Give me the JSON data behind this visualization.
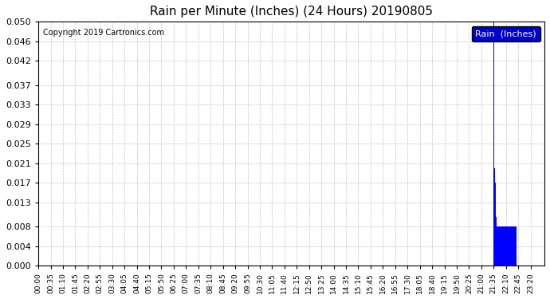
{
  "title": "Rain per Minute (Inches) (24 Hours) 20190805",
  "copyright_text": "Copyright 2019 Cartronics.com",
  "legend_label": "Rain  (Inches)",
  "bar_color": "#0000ff",
  "background_color": "#ffffff",
  "grid_color": "#aaaaaa",
  "ylim": [
    0.0,
    0.05
  ],
  "yticks": [
    0.0,
    0.004,
    0.008,
    0.013,
    0.017,
    0.021,
    0.025,
    0.029,
    0.033,
    0.037,
    0.042,
    0.046,
    0.05
  ],
  "total_minutes": 1440,
  "rain_events": [
    {
      "minute": 1295,
      "value": 0.05
    },
    {
      "minute": 1296,
      "value": 0.02
    },
    {
      "minute": 1297,
      "value": 0.029
    },
    {
      "minute": 1298,
      "value": 0.02
    },
    {
      "minute": 1299,
      "value": 0.021
    },
    {
      "minute": 1300,
      "value": 0.017
    },
    {
      "minute": 1301,
      "value": 0.013
    },
    {
      "minute": 1302,
      "value": 0.01
    },
    {
      "minute": 1303,
      "value": 0.008
    },
    {
      "minute": 1304,
      "value": 0.008
    },
    {
      "minute": 1305,
      "value": 0.008
    },
    {
      "minute": 1306,
      "value": 0.008
    },
    {
      "minute": 1307,
      "value": 0.008
    },
    {
      "minute": 1308,
      "value": 0.008
    },
    {
      "minute": 1309,
      "value": 0.008
    },
    {
      "minute": 1310,
      "value": 0.008
    },
    {
      "minute": 1311,
      "value": 0.008
    },
    {
      "minute": 1312,
      "value": 0.008
    },
    {
      "minute": 1313,
      "value": 0.008
    },
    {
      "minute": 1314,
      "value": 0.008
    },
    {
      "minute": 1315,
      "value": 0.008
    },
    {
      "minute": 1316,
      "value": 0.008
    },
    {
      "minute": 1317,
      "value": 0.008
    },
    {
      "minute": 1318,
      "value": 0.008
    },
    {
      "minute": 1319,
      "value": 0.008
    },
    {
      "minute": 1320,
      "value": 0.008
    },
    {
      "minute": 1321,
      "value": 0.008
    },
    {
      "minute": 1322,
      "value": 0.008
    },
    {
      "minute": 1323,
      "value": 0.008
    },
    {
      "minute": 1324,
      "value": 0.008
    },
    {
      "minute": 1325,
      "value": 0.008
    },
    {
      "minute": 1326,
      "value": 0.008
    },
    {
      "minute": 1327,
      "value": 0.008
    },
    {
      "minute": 1328,
      "value": 0.008
    },
    {
      "minute": 1329,
      "value": 0.008
    },
    {
      "minute": 1330,
      "value": 0.008
    },
    {
      "minute": 1331,
      "value": 0.008
    },
    {
      "minute": 1332,
      "value": 0.008
    },
    {
      "minute": 1333,
      "value": 0.008
    },
    {
      "minute": 1334,
      "value": 0.008
    },
    {
      "minute": 1335,
      "value": 0.008
    },
    {
      "minute": 1336,
      "value": 0.008
    },
    {
      "minute": 1337,
      "value": 0.008
    },
    {
      "minute": 1338,
      "value": 0.008
    },
    {
      "minute": 1339,
      "value": 0.008
    },
    {
      "minute": 1340,
      "value": 0.008
    },
    {
      "minute": 1341,
      "value": 0.008
    },
    {
      "minute": 1342,
      "value": 0.008
    },
    {
      "minute": 1343,
      "value": 0.008
    },
    {
      "minute": 1344,
      "value": 0.008
    },
    {
      "minute": 1345,
      "value": 0.008
    },
    {
      "minute": 1346,
      "value": 0.008
    },
    {
      "minute": 1347,
      "value": 0.008
    },
    {
      "minute": 1348,
      "value": 0.008
    },
    {
      "minute": 1349,
      "value": 0.008
    },
    {
      "minute": 1350,
      "value": 0.008
    },
    {
      "minute": 1351,
      "value": 0.008
    },
    {
      "minute": 1352,
      "value": 0.008
    },
    {
      "minute": 1353,
      "value": 0.008
    },
    {
      "minute": 1354,
      "value": 0.008
    },
    {
      "minute": 1355,
      "value": 0.008
    },
    {
      "minute": 1356,
      "value": 0.008
    },
    {
      "minute": 1357,
      "value": 0.008
    },
    {
      "minute": 1358,
      "value": 0.008
    },
    {
      "minute": 1359,
      "value": 0.008
    }
  ],
  "xtick_minutes": [
    0,
    35,
    70,
    105,
    140,
    175,
    210,
    245,
    280,
    315,
    350,
    385,
    420,
    455,
    490,
    525,
    560,
    595,
    630,
    665,
    700,
    735,
    770,
    805,
    840,
    875,
    910,
    945,
    980,
    1015,
    1050,
    1085,
    1120,
    1155,
    1190,
    1225,
    1260,
    1295,
    1330,
    1365,
    1400
  ],
  "xtick_labels": [
    "00:00",
    "00:35",
    "01:10",
    "01:45",
    "02:20",
    "02:55",
    "03:30",
    "04:05",
    "04:40",
    "05:15",
    "05:50",
    "06:25",
    "07:00",
    "07:35",
    "08:10",
    "08:45",
    "09:20",
    "09:55",
    "10:30",
    "11:05",
    "11:40",
    "12:15",
    "12:50",
    "13:25",
    "14:00",
    "14:35",
    "15:10",
    "15:45",
    "16:20",
    "16:55",
    "17:30",
    "18:05",
    "18:40",
    "19:15",
    "19:50",
    "20:25",
    "21:00",
    "21:35",
    "22:10",
    "22:45",
    "23:20"
  ]
}
